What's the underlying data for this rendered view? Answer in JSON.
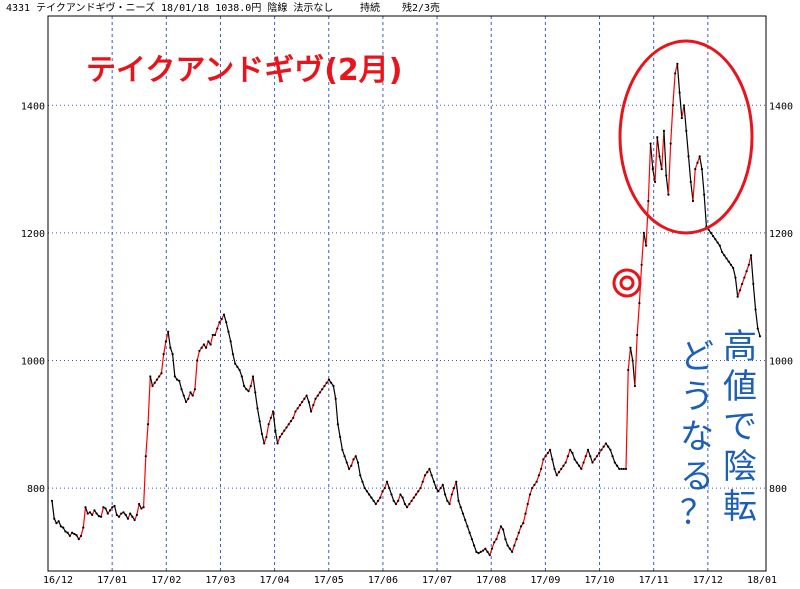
{
  "header": {
    "info": "4331 テイクアンドギヴ・ニーズ 18/01/18 1038.0円 陰線 法示なし",
    "status": "持続",
    "remaining": "残2/3売"
  },
  "annotations": {
    "title": "テイクアンドギヴ(2月)",
    "vertical_col1": [
      "高",
      "値",
      "で",
      "陰",
      "転"
    ],
    "vertical_col2": [
      "ど",
      "う",
      "な",
      "る",
      "？"
    ]
  },
  "colors": {
    "up": "#ff0000",
    "down": "#000000",
    "grid": "#3b5bbf",
    "title": "#e8141c",
    "annotation": "#1c5fb4",
    "highlight": "#e8141c"
  },
  "chart_data": {
    "type": "line",
    "title": "",
    "xlabel": "",
    "ylabel": "",
    "x_ticks": [
      "16/12",
      "17/01",
      "17/02",
      "17/03",
      "17/04",
      "17/05",
      "17/06",
      "17/07",
      "17/08",
      "17/09",
      "17/10",
      "17/11",
      "17/12",
      "18/01"
    ],
    "y_ticks": [
      800,
      1000,
      1200,
      1400
    ],
    "ylim": [
      670,
      1540
    ],
    "grid": true,
    "price_note": "daily close, colored red on rising stretches and black on falling stretches",
    "series": [
      {
        "values": [
          780,
          752,
          745,
          748,
          740,
          738,
          732,
          730,
          725,
          730,
          728,
          726,
          720,
          725,
          738,
          770,
          760,
          762,
          758,
          765,
          760,
          756,
          755,
          770,
          768,
          760,
          765,
          770,
          772,
          758,
          755,
          760,
          762,
          758,
          752,
          760,
          755,
          750,
          758,
          775,
          768,
          770,
          850,
          900,
          975,
          960,
          965,
          970,
          975,
          980,
          1010,
          1030,
          1045,
          1020,
          1010,
          975,
          970,
          968,
          955,
          945,
          935,
          940,
          950,
          945,
          955,
          1000,
          1015,
          1020,
          1025,
          1020,
          1030,
          1025,
          1040,
          1040,
          1050,
          1060,
          1065,
          1072,
          1060,
          1045,
          1030,
          1010,
          995,
          990,
          985,
          975,
          960,
          955,
          952,
          960,
          975,
          950,
          925,
          905,
          885,
          870,
          880,
          900,
          910,
          920,
          890,
          870,
          880,
          885,
          890,
          895,
          900,
          905,
          910,
          920,
          925,
          930,
          935,
          940,
          945,
          935,
          920,
          930,
          940,
          945,
          950,
          955,
          960,
          965,
          970,
          965,
          960,
          940,
          900,
          880,
          860,
          850,
          840,
          830,
          835,
          845,
          850,
          840,
          820,
          810,
          800,
          795,
          790,
          785,
          780,
          775,
          780,
          785,
          795,
          800,
          810,
          800,
          790,
          780,
          775,
          780,
          790,
          785,
          775,
          770,
          775,
          780,
          785,
          790,
          795,
          800,
          810,
          820,
          825,
          830,
          820,
          810,
          800,
          795,
          800,
          805,
          790,
          780,
          775,
          790,
          800,
          810,
          780,
          770,
          760,
          750,
          740,
          730,
          720,
          710,
          700,
          698,
          700,
          702,
          705,
          700,
          695,
          705,
          715,
          720,
          730,
          740,
          735,
          720,
          710,
          705,
          700,
          710,
          720,
          730,
          740,
          745,
          760,
          775,
          790,
          800,
          805,
          810,
          820,
          830,
          845,
          850,
          855,
          860,
          845,
          830,
          820,
          825,
          830,
          835,
          840,
          850,
          860,
          855,
          845,
          840,
          835,
          830,
          840,
          850,
          860,
          850,
          840,
          845,
          850,
          855,
          860,
          865,
          870,
          865,
          860,
          850,
          840,
          835,
          830,
          830,
          830,
          830,
          985,
          1020,
          1000,
          960,
          1040,
          1090,
          1150,
          1200,
          1180,
          1250,
          1340,
          1300,
          1280,
          1350,
          1320,
          1300,
          1360,
          1290,
          1260,
          1340,
          1400,
          1450,
          1465,
          1420,
          1380,
          1400,
          1360,
          1320,
          1280,
          1250,
          1300,
          1310,
          1320,
          1300,
          1260,
          1210,
          1205,
          1200,
          1195,
          1190,
          1185,
          1180,
          1170,
          1165,
          1160,
          1155,
          1150,
          1145,
          1130,
          1100,
          1110,
          1120,
          1130,
          1140,
          1150,
          1165,
          1120,
          1080,
          1050,
          1038
        ]
      }
    ]
  }
}
